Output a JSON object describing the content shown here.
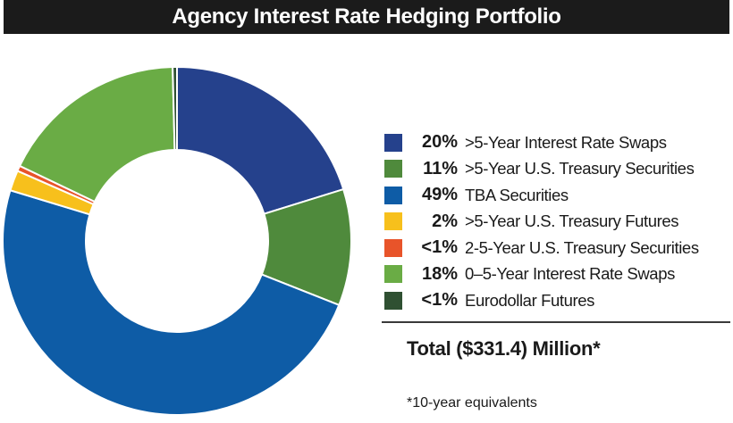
{
  "title": "Agency Interest Rate Hedging Portfolio",
  "chart_data": {
    "type": "pie",
    "title": "Agency Interest Rate Hedging Portfolio",
    "slices": [
      {
        "pct": "20%",
        "label": ">5-Year Interest Rate Swaps",
        "value": 20.2,
        "color": "#25418c"
      },
      {
        "pct": "11%",
        "label": ">5-Year U.S. Treasury Securities",
        "value": 10.8,
        "color": "#4f8a3c"
      },
      {
        "pct": "49%",
        "label": "TBA Securities",
        "value": 48.7,
        "color": "#0e5ca6"
      },
      {
        "pct": "2%",
        "label": ">5-Year U.S. Treasury Futures",
        "value": 1.9,
        "color": "#f7c01c"
      },
      {
        "pct": "<1%",
        "label": "2-5-Year U.S. Treasury Securities",
        "value": 0.5,
        "color": "#e8542a"
      },
      {
        "pct": "18%",
        "label": "0–5-Year Interest Rate Swaps",
        "value": 17.5,
        "color": "#6aac45"
      },
      {
        "pct": "<1%",
        "label": "Eurodollar Futures",
        "value": 0.4,
        "color": "#2f5032"
      }
    ],
    "total": "Total ($331.4) Million*",
    "footnote": "*10-year equivalents",
    "legend_position": "right"
  }
}
